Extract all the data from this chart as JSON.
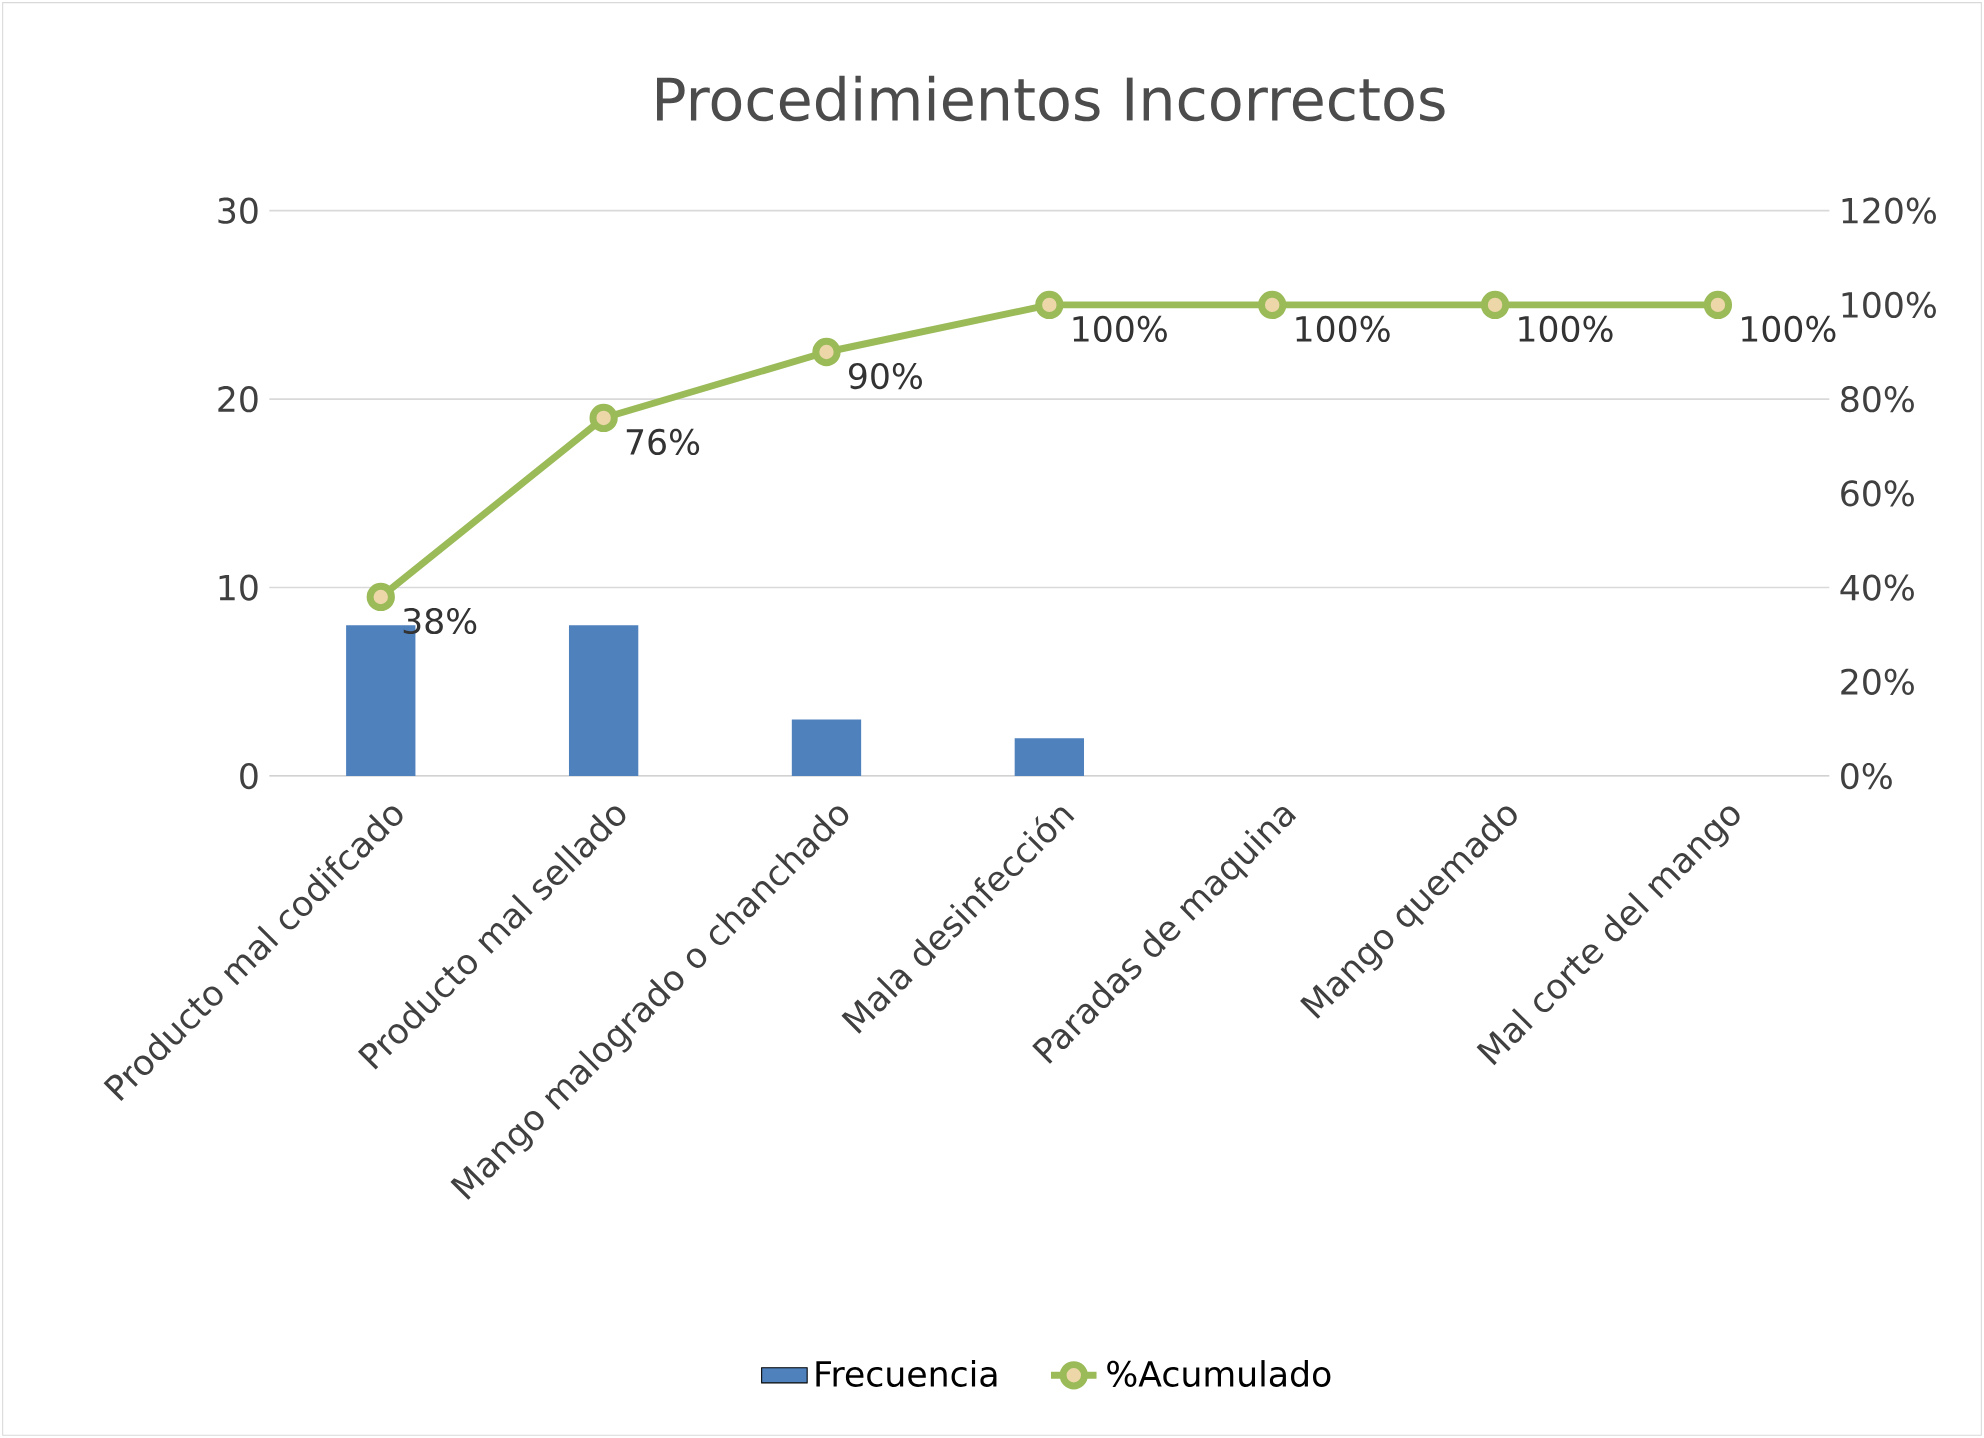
{
  "chart_data": {
    "type": "bar",
    "title": "Procedimientos Incorrectos",
    "categories": [
      "Producto mal codifcado",
      "Producto mal sellado",
      "Mango malogrado o chanchado",
      "Mala desinfección",
      "Paradas de maquina",
      "Mango quemado",
      "Mal corte del mango"
    ],
    "series": [
      {
        "name": "Frecuencia",
        "color": "#4f81bd",
        "values": [
          8,
          8,
          3,
          2,
          0,
          0,
          0
        ]
      },
      {
        "name": "%Acumulado",
        "type": "line",
        "axis": "y2",
        "color": "#9bbb59",
        "values": [
          38,
          76,
          90,
          100,
          100,
          100,
          100
        ],
        "value_labels": [
          "38%",
          "76%",
          "90%",
          "100%",
          "100%",
          "100%",
          "100%"
        ]
      }
    ],
    "ylim": [
      0,
      30
    ],
    "yticks": [
      0,
      10,
      20,
      30
    ],
    "y2lim": [
      0,
      120
    ],
    "y2ticks": [
      {
        "value": 0,
        "label": "0%"
      },
      {
        "value": 20,
        "label": "20%"
      },
      {
        "value": 40,
        "label": "40%"
      },
      {
        "value": 60,
        "label": "60%"
      },
      {
        "value": 80,
        "label": "80%"
      },
      {
        "value": 100,
        "label": "100%"
      },
      {
        "value": 120,
        "label": "120%"
      }
    ],
    "grid": "y",
    "legend": "bottom",
    "marker": "circle"
  }
}
